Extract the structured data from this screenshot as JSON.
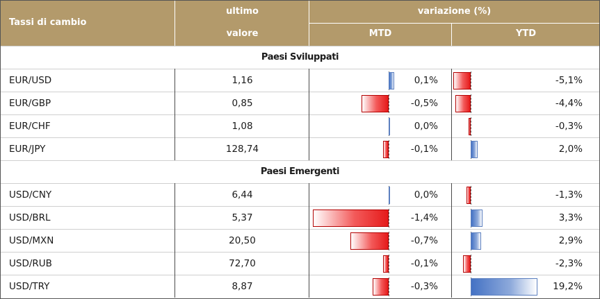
{
  "header": {
    "col_pair": "Tassi di cambio",
    "col_last_top": "ultimo",
    "col_last_bottom": "valore",
    "col_var": "variazione (%)",
    "col_mtd": "MTD",
    "col_ytd": "YTD"
  },
  "sections": {
    "developed": "Paesi Sviluppati",
    "emerging": "Paesi Emergenti"
  },
  "colors": {
    "header_bg": "#b39a6b",
    "negative": "#e51b1b",
    "positive": "#4472c4"
  },
  "rows": [
    {
      "pair": "EUR/USD",
      "value": "1,16",
      "mtd": "0,1%",
      "ytd": "-5,1%",
      "mtd_num": 0.1,
      "ytd_num": -5.1
    },
    {
      "pair": "EUR/GBP",
      "value": "0,85",
      "mtd": "-0,5%",
      "ytd": "-4,4%",
      "mtd_num": -0.5,
      "ytd_num": -4.4
    },
    {
      "pair": "EUR/CHF",
      "value": "1,08",
      "mtd": "0,0%",
      "ytd": "-0,3%",
      "mtd_num": 0.0,
      "ytd_num": -0.3
    },
    {
      "pair": "EUR/JPY",
      "value": "128,74",
      "mtd": "-0,1%",
      "ytd": "2,0%",
      "mtd_num": -0.1,
      "ytd_num": 2.0
    },
    {
      "pair": "USD/CNY",
      "value": "6,44",
      "mtd": "0,0%",
      "ytd": "-1,3%",
      "mtd_num": 0.0,
      "ytd_num": -1.3
    },
    {
      "pair": "USD/BRL",
      "value": "5,37",
      "mtd": "-1,4%",
      "ytd": "3,3%",
      "mtd_num": -1.4,
      "ytd_num": 3.3
    },
    {
      "pair": "USD/MXN",
      "value": "20,50",
      "mtd": "-0,7%",
      "ytd": "2,9%",
      "mtd_num": -0.7,
      "ytd_num": 2.9
    },
    {
      "pair": "USD/RUB",
      "value": "72,70",
      "mtd": "-0,1%",
      "ytd": "-2,3%",
      "mtd_num": -0.1,
      "ytd_num": -2.3
    },
    {
      "pair": "USD/TRY",
      "value": "8,87",
      "mtd": "-0,3%",
      "ytd": "19,2%",
      "mtd_num": -0.3,
      "ytd_num": 19.2
    }
  ]
}
